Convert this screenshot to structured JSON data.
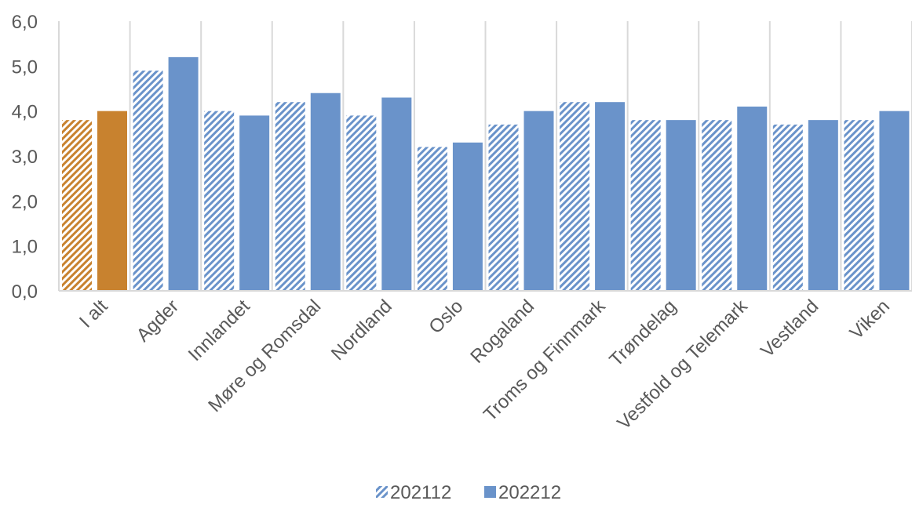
{
  "chart_data": {
    "type": "bar",
    "categories": [
      "I alt",
      "Agder",
      "Innlandet",
      "Møre og Romsdal",
      "Nordland",
      "Oslo",
      "Rogaland",
      "Troms og Finnmark",
      "Trøndelag",
      "Vestfold og Telemark",
      "Vestland",
      "Viken"
    ],
    "series": [
      {
        "name": "202112",
        "values": [
          3.8,
          4.9,
          4.0,
          4.2,
          3.9,
          3.2,
          3.7,
          4.2,
          3.8,
          3.8,
          3.7,
          3.8
        ]
      },
      {
        "name": "202212",
        "values": [
          4.0,
          5.2,
          3.9,
          4.4,
          4.3,
          3.3,
          4.0,
          4.2,
          3.8,
          4.1,
          3.8,
          4.0
        ]
      }
    ],
    "ylim": [
      0,
      6
    ],
    "yticks": [
      "0,0",
      "1,0",
      "2,0",
      "3,0",
      "4,0",
      "5,0",
      "6,0"
    ],
    "grid": "vertical",
    "legend_position": "bottom",
    "colors": {
      "series_main": "#6a93ca",
      "series_highlight": "#c8822f",
      "axis": "#d9d9d9",
      "text": "#595959"
    },
    "highlight_category": "I alt"
  }
}
